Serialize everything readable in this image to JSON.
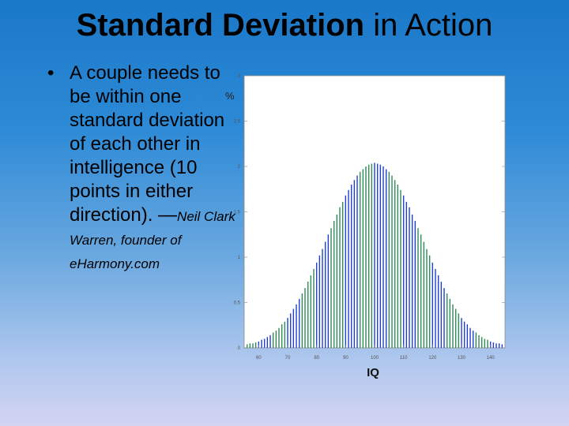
{
  "slide": {
    "title_bold": "Standard Deviation",
    "title_rest": " in Action",
    "bullet_symbol": "•",
    "bullet_text": "A couple needs to be within one standard deviation of each other in intelligence (10 points in either direction). —",
    "citation": "Neil Clark Warren, founder of eHarmony.com"
  },
  "chart_data": {
    "type": "bar",
    "xlabel": "IQ",
    "ylabel": "%",
    "x_ticks": [
      60,
      70,
      80,
      90,
      100,
      110,
      120,
      130,
      140
    ],
    "y_ticks": [
      "0",
      "0.5",
      "1",
      "1.5",
      "2",
      "2.5",
      "3"
    ],
    "xlim": [
      55,
      145
    ],
    "ylim": [
      0,
      3
    ],
    "distribution": {
      "mean": 100,
      "sd": 15,
      "unit": "percent"
    },
    "x": [
      56,
      57,
      58,
      59,
      60,
      61,
      62,
      63,
      64,
      65,
      66,
      67,
      68,
      69,
      70,
      71,
      72,
      73,
      74,
      75,
      76,
      77,
      78,
      79,
      80,
      81,
      82,
      83,
      84,
      85,
      86,
      87,
      88,
      89,
      90,
      91,
      92,
      93,
      94,
      95,
      96,
      97,
      98,
      99,
      100,
      101,
      102,
      103,
      104,
      105,
      106,
      107,
      108,
      109,
      110,
      111,
      112,
      113,
      114,
      115,
      116,
      117,
      118,
      119,
      120,
      121,
      122,
      123,
      124,
      125,
      126,
      127,
      128,
      129,
      130,
      131,
      132,
      133,
      134,
      135,
      136,
      137,
      138,
      139,
      140,
      141,
      142,
      143,
      144
    ],
    "values": [
      0.04,
      0.05,
      0.05,
      0.06,
      0.07,
      0.09,
      0.1,
      0.12,
      0.14,
      0.17,
      0.19,
      0.22,
      0.26,
      0.29,
      0.33,
      0.38,
      0.43,
      0.48,
      0.54,
      0.6,
      0.66,
      0.73,
      0.8,
      0.87,
      0.94,
      1.02,
      1.09,
      1.17,
      1.25,
      1.32,
      1.4,
      1.47,
      1.55,
      1.61,
      1.68,
      1.74,
      1.8,
      1.85,
      1.9,
      1.94,
      1.97,
      2.0,
      2.02,
      2.03,
      2.04,
      2.03,
      2.02,
      2.0,
      1.97,
      1.94,
      1.9,
      1.85,
      1.8,
      1.74,
      1.68,
      1.61,
      1.55,
      1.47,
      1.4,
      1.32,
      1.25,
      1.17,
      1.09,
      1.02,
      0.94,
      0.87,
      0.8,
      0.73,
      0.66,
      0.6,
      0.54,
      0.48,
      0.43,
      0.38,
      0.33,
      0.29,
      0.26,
      0.22,
      0.19,
      0.17,
      0.14,
      0.12,
      0.1,
      0.09,
      0.07,
      0.06,
      0.05,
      0.05,
      0.04
    ],
    "colors": {
      "bar_green": "#2e8b57",
      "bar_blue": "#1f3fd6",
      "axis": "#8a8a8a",
      "plot_bg": "#ffffff"
    }
  }
}
